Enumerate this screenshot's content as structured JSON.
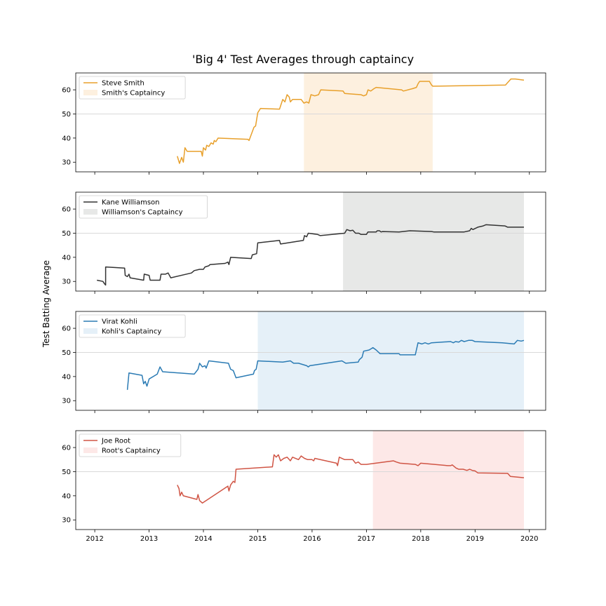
{
  "figure": {
    "title": "'Big 4' Test Averages through captaincy",
    "ylabel": "Test Batting Average"
  },
  "chart_data": {
    "type": "line",
    "title": "'Big 4' Test Averages through captaincy",
    "ylabel": "Test Batting Average",
    "xlim": [
      2011.65,
      2020.3
    ],
    "ylim": [
      26,
      67
    ],
    "x_ticks": [
      2012,
      2013,
      2014,
      2015,
      2016,
      2017,
      2018,
      2019,
      2020
    ],
    "y_ticks": [
      30,
      40,
      50,
      60
    ],
    "reference_line": 50,
    "grid": false,
    "legend_position": "upper-left",
    "panels": [
      {
        "player": "Steve Smith",
        "band_label": "Smith's Captaincy",
        "color": "#e8a02b",
        "band_color": "#fdf0df",
        "captaincy": [
          2015.85,
          2018.22
        ],
        "points": [
          [
            2013.52,
            32.5
          ],
          [
            2013.56,
            29.5
          ],
          [
            2013.6,
            32
          ],
          [
            2013.63,
            30
          ],
          [
            2013.66,
            36
          ],
          [
            2013.7,
            34.5
          ],
          [
            2013.96,
            34.5
          ],
          [
            2013.98,
            32.5
          ],
          [
            2014.0,
            36
          ],
          [
            2014.04,
            35
          ],
          [
            2014.06,
            37
          ],
          [
            2014.1,
            36.5
          ],
          [
            2014.14,
            38
          ],
          [
            2014.18,
            37.5
          ],
          [
            2014.2,
            39
          ],
          [
            2014.23,
            38.5
          ],
          [
            2014.27,
            40
          ],
          [
            2014.82,
            39.5
          ],
          [
            2014.84,
            39
          ],
          [
            2014.93,
            44.5
          ],
          [
            2014.96,
            45
          ],
          [
            2015.0,
            50.5
          ],
          [
            2015.05,
            52.3
          ],
          [
            2015.4,
            52
          ],
          [
            2015.46,
            56
          ],
          [
            2015.5,
            55
          ],
          [
            2015.54,
            58
          ],
          [
            2015.58,
            57
          ],
          [
            2015.6,
            55
          ],
          [
            2015.64,
            56
          ],
          [
            2015.8,
            56
          ],
          [
            2015.85,
            54.5
          ],
          [
            2015.9,
            55
          ],
          [
            2015.94,
            54.5
          ],
          [
            2015.98,
            58
          ],
          [
            2016.05,
            57.5
          ],
          [
            2016.12,
            58
          ],
          [
            2016.16,
            60
          ],
          [
            2016.57,
            59.5
          ],
          [
            2016.6,
            58.5
          ],
          [
            2016.9,
            58
          ],
          [
            2016.95,
            57.5
          ],
          [
            2017.0,
            58
          ],
          [
            2017.03,
            60
          ],
          [
            2017.08,
            59.5
          ],
          [
            2017.14,
            60.5
          ],
          [
            2017.18,
            61
          ],
          [
            2017.65,
            60
          ],
          [
            2017.68,
            59.5
          ],
          [
            2017.85,
            60.5
          ],
          [
            2017.92,
            61
          ],
          [
            2017.95,
            62.5
          ],
          [
            2017.98,
            63.5
          ],
          [
            2018.16,
            63.5
          ],
          [
            2018.2,
            62
          ],
          [
            2018.22,
            61.5
          ],
          [
            2019.56,
            62
          ],
          [
            2019.6,
            63
          ],
          [
            2019.66,
            64.5
          ],
          [
            2019.74,
            64.5
          ],
          [
            2019.9,
            64
          ]
        ]
      },
      {
        "player": "Kane Williamson",
        "band_label": "Williamson's Captaincy",
        "color": "#333333",
        "band_color": "#e7e8e7",
        "captaincy": [
          2016.57,
          2019.9
        ],
        "points": [
          [
            2012.04,
            30.5
          ],
          [
            2012.15,
            30
          ],
          [
            2012.18,
            29
          ],
          [
            2012.2,
            28.5
          ],
          [
            2012.2,
            36
          ],
          [
            2012.55,
            35.5
          ],
          [
            2012.56,
            32.5
          ],
          [
            2012.6,
            32
          ],
          [
            2012.63,
            33
          ],
          [
            2012.65,
            31.5
          ],
          [
            2012.9,
            30.5
          ],
          [
            2012.91,
            33
          ],
          [
            2013.0,
            32.5
          ],
          [
            2013.02,
            30.5
          ],
          [
            2013.2,
            30.5
          ],
          [
            2013.22,
            33
          ],
          [
            2013.3,
            33
          ],
          [
            2013.35,
            33.5
          ],
          [
            2013.4,
            31.5
          ],
          [
            2013.78,
            33.5
          ],
          [
            2013.83,
            34.5
          ],
          [
            2013.93,
            35
          ],
          [
            2014.0,
            35
          ],
          [
            2014.03,
            36
          ],
          [
            2014.1,
            36.5
          ],
          [
            2014.12,
            37
          ],
          [
            2014.4,
            37.5
          ],
          [
            2014.45,
            38
          ],
          [
            2014.47,
            37
          ],
          [
            2014.5,
            40
          ],
          [
            2014.88,
            39.5
          ],
          [
            2014.9,
            41
          ],
          [
            2014.98,
            41.5
          ],
          [
            2015.0,
            46
          ],
          [
            2015.4,
            47
          ],
          [
            2015.42,
            45.5
          ],
          [
            2015.84,
            47
          ],
          [
            2015.86,
            49
          ],
          [
            2015.9,
            48.5
          ],
          [
            2015.93,
            50
          ],
          [
            2016.1,
            49.5
          ],
          [
            2016.15,
            49
          ],
          [
            2016.6,
            50
          ],
          [
            2016.64,
            51.5
          ],
          [
            2016.7,
            51
          ],
          [
            2016.75,
            51.2
          ],
          [
            2016.8,
            50
          ],
          [
            2016.86,
            50
          ],
          [
            2016.9,
            49.5
          ],
          [
            2017.0,
            49.5
          ],
          [
            2017.03,
            50.5
          ],
          [
            2017.18,
            50.5
          ],
          [
            2017.2,
            51
          ],
          [
            2017.24,
            51
          ],
          [
            2017.27,
            50.5
          ],
          [
            2017.3,
            50.7
          ],
          [
            2017.6,
            50.5
          ],
          [
            2017.8,
            51
          ],
          [
            2018.2,
            50.7
          ],
          [
            2018.24,
            50.5
          ],
          [
            2018.8,
            50.5
          ],
          [
            2018.9,
            51
          ],
          [
            2018.93,
            52
          ],
          [
            2018.96,
            51.5
          ],
          [
            2019.05,
            52.5
          ],
          [
            2019.15,
            53
          ],
          [
            2019.2,
            53.5
          ],
          [
            2019.55,
            53
          ],
          [
            2019.6,
            52.5
          ],
          [
            2019.9,
            52.5
          ]
        ]
      },
      {
        "player": "Virat Kohli",
        "band_label": "Kohli's Captaincy",
        "color": "#2b7bb4",
        "band_color": "#e5f0f8",
        "captaincy": [
          2015.0,
          2019.9
        ],
        "points": [
          [
            2012.6,
            34.5
          ],
          [
            2012.63,
            41.5
          ],
          [
            2012.87,
            40.5
          ],
          [
            2012.9,
            37
          ],
          [
            2012.93,
            38
          ],
          [
            2012.96,
            36
          ],
          [
            2013.0,
            39
          ],
          [
            2013.15,
            41
          ],
          [
            2013.2,
            44
          ],
          [
            2013.25,
            42
          ],
          [
            2013.83,
            41
          ],
          [
            2013.9,
            43
          ],
          [
            2013.93,
            45.5
          ],
          [
            2013.98,
            44
          ],
          [
            2014.03,
            44.5
          ],
          [
            2014.05,
            43.5
          ],
          [
            2014.1,
            46.5
          ],
          [
            2014.46,
            45.5
          ],
          [
            2014.5,
            43
          ],
          [
            2014.55,
            42.5
          ],
          [
            2014.6,
            39.5
          ],
          [
            2014.92,
            41
          ],
          [
            2014.94,
            42.5
          ],
          [
            2014.97,
            43
          ],
          [
            2015.0,
            46.5
          ],
          [
            2015.46,
            46
          ],
          [
            2015.6,
            46.5
          ],
          [
            2015.66,
            45.5
          ],
          [
            2015.75,
            45.5
          ],
          [
            2015.9,
            44.5
          ],
          [
            2015.93,
            44
          ],
          [
            2015.96,
            44.5
          ],
          [
            2016.55,
            46.5
          ],
          [
            2016.62,
            45.5
          ],
          [
            2016.85,
            46
          ],
          [
            2016.87,
            47
          ],
          [
            2016.92,
            48
          ],
          [
            2016.95,
            50.5
          ],
          [
            2017.05,
            51
          ],
          [
            2017.12,
            52
          ],
          [
            2017.18,
            51
          ],
          [
            2017.25,
            49.5
          ],
          [
            2017.6,
            49.5
          ],
          [
            2017.62,
            49
          ],
          [
            2017.9,
            49
          ],
          [
            2017.95,
            54
          ],
          [
            2018.02,
            53.5
          ],
          [
            2018.08,
            54
          ],
          [
            2018.14,
            53.5
          ],
          [
            2018.2,
            54
          ],
          [
            2018.55,
            54.5
          ],
          [
            2018.6,
            54
          ],
          [
            2018.64,
            54.5
          ],
          [
            2018.7,
            54.3
          ],
          [
            2018.75,
            55
          ],
          [
            2018.8,
            54.5
          ],
          [
            2018.88,
            55
          ],
          [
            2018.95,
            55
          ],
          [
            2019.0,
            54.5
          ],
          [
            2019.5,
            54
          ],
          [
            2019.72,
            53.5
          ],
          [
            2019.78,
            55
          ],
          [
            2019.85,
            54.7
          ],
          [
            2019.9,
            55
          ]
        ]
      },
      {
        "player": "Joe Root",
        "band_label": "Root's Captaincy",
        "color": "#d05545",
        "band_color": "#fde8e7",
        "captaincy": [
          2017.12,
          2019.9
        ],
        "points": [
          [
            2013.52,
            44.5
          ],
          [
            2013.55,
            43
          ],
          [
            2013.57,
            40
          ],
          [
            2013.6,
            41.5
          ],
          [
            2013.63,
            40
          ],
          [
            2013.88,
            38.5
          ],
          [
            2013.9,
            40.5
          ],
          [
            2013.93,
            38
          ],
          [
            2013.98,
            37
          ],
          [
            2014.45,
            44
          ],
          [
            2014.47,
            42
          ],
          [
            2014.5,
            44.5
          ],
          [
            2014.55,
            46
          ],
          [
            2014.58,
            45.5
          ],
          [
            2014.6,
            51
          ],
          [
            2015.27,
            52
          ],
          [
            2015.3,
            57
          ],
          [
            2015.34,
            56
          ],
          [
            2015.38,
            57
          ],
          [
            2015.42,
            54.5
          ],
          [
            2015.48,
            55.5
          ],
          [
            2015.54,
            56
          ],
          [
            2015.6,
            54.5
          ],
          [
            2015.64,
            56
          ],
          [
            2015.75,
            55
          ],
          [
            2015.8,
            56.5
          ],
          [
            2015.86,
            55.5
          ],
          [
            2015.92,
            55
          ],
          [
            2016.0,
            55
          ],
          [
            2016.03,
            54.5
          ],
          [
            2016.05,
            55.5
          ],
          [
            2016.45,
            53.5
          ],
          [
            2016.47,
            52.5
          ],
          [
            2016.5,
            56
          ],
          [
            2016.6,
            55
          ],
          [
            2016.75,
            55
          ],
          [
            2016.8,
            53.5
          ],
          [
            2016.85,
            54
          ],
          [
            2016.9,
            53
          ],
          [
            2017.0,
            53
          ],
          [
            2017.5,
            54.5
          ],
          [
            2017.55,
            54
          ],
          [
            2017.62,
            53.5
          ],
          [
            2017.9,
            53
          ],
          [
            2017.95,
            52.5
          ],
          [
            2018.0,
            53.5
          ],
          [
            2018.5,
            52.5
          ],
          [
            2018.55,
            52.5
          ],
          [
            2018.58,
            52.8
          ],
          [
            2018.65,
            51.5
          ],
          [
            2018.7,
            51
          ],
          [
            2018.78,
            51
          ],
          [
            2018.85,
            50.5
          ],
          [
            2018.9,
            51
          ],
          [
            2018.95,
            50.5
          ],
          [
            2019.0,
            50.3
          ],
          [
            2019.05,
            49.5
          ],
          [
            2019.6,
            49.3
          ],
          [
            2019.65,
            48
          ],
          [
            2019.9,
            47.5
          ]
        ]
      }
    ]
  }
}
